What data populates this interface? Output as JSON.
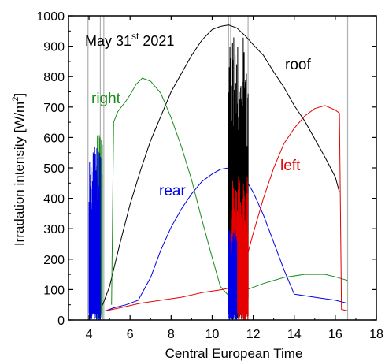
{
  "chart_data": {
    "type": "line",
    "title_parts": {
      "prefix": "May 31",
      "sup": "st",
      "suffix": " 2021"
    },
    "xlabel": "Central European Time",
    "ylabel": "Irradation intensity [W/m",
    "ylabel_sup": "2",
    "ylabel_suffix": "]",
    "xlim": [
      3,
      18
    ],
    "ylim": [
      0,
      1000
    ],
    "xticks": [
      4,
      6,
      8,
      10,
      12,
      14,
      16,
      18
    ],
    "yticks": [
      0,
      100,
      200,
      300,
      400,
      500,
      600,
      700,
      800,
      900,
      1000
    ],
    "xtick_labels": [
      "4",
      "6",
      "8",
      "10",
      "12",
      "14",
      "16",
      "18"
    ],
    "ytick_labels": [
      "0",
      "100",
      "200",
      "300",
      "400",
      "500",
      "600",
      "700",
      "800",
      "900",
      "1000"
    ],
    "vertical_markers": [
      3.95,
      4.55,
      4.72,
      10.8,
      10.9,
      11.75,
      16.6
    ],
    "series": [
      {
        "name": "roof",
        "color": "#000000",
        "x": [
          4.5,
          5.0,
          5.5,
          6.0,
          6.5,
          7.0,
          7.5,
          8.0,
          8.5,
          9.0,
          9.5,
          10.0,
          10.4,
          10.8,
          11.2,
          11.6,
          12.0,
          12.5,
          13.0,
          13.5,
          14.0,
          14.5,
          15.0,
          15.5,
          16.0,
          16.2
        ],
        "y": [
          20,
          110,
          250,
          380,
          490,
          590,
          670,
          750,
          810,
          870,
          920,
          955,
          965,
          970,
          960,
          935,
          905,
          870,
          815,
          765,
          705,
          655,
          595,
          535,
          470,
          420
        ]
      },
      {
        "name": "right",
        "color": "#1a8c1a",
        "x": [
          5.1,
          5.2,
          5.4,
          5.8,
          6.0,
          6.3,
          6.6,
          7.0,
          7.5,
          8.0,
          8.5,
          9.0,
          9.5,
          10.0,
          10.4,
          10.8,
          11.5,
          12.5,
          13.5,
          14.5,
          15.5,
          16.0,
          16.6
        ],
        "y": [
          50,
          650,
          685,
          720,
          740,
          775,
          795,
          785,
          745,
          665,
          570,
          460,
          330,
          205,
          110,
          80,
          95,
          120,
          140,
          150,
          150,
          142,
          130
        ]
      },
      {
        "name": "rear",
        "color": "#0000e6",
        "x": [
          4.8,
          5.2,
          5.8,
          6.4,
          7.0,
          7.5,
          8.0,
          8.5,
          9.0,
          9.5,
          10.0,
          10.4,
          10.8,
          11.2,
          11.6,
          12.0,
          12.5,
          13.0,
          13.5,
          14.0,
          15.0,
          16.0,
          16.6
        ],
        "y": [
          30,
          40,
          50,
          65,
          140,
          230,
          305,
          365,
          415,
          455,
          480,
          495,
          500,
          490,
          465,
          420,
          345,
          255,
          165,
          85,
          75,
          65,
          55
        ]
      },
      {
        "name": "left",
        "color": "#e60000",
        "x": [
          4.8,
          5.5,
          6.5,
          7.5,
          8.5,
          9.5,
          10.5,
          10.8,
          11.5,
          12.0,
          12.5,
          13.0,
          13.5,
          14.0,
          14.5,
          15.0,
          15.5,
          16.0,
          16.2,
          16.3,
          16.6
        ],
        "y": [
          30,
          40,
          55,
          65,
          75,
          90,
          100,
          105,
          160,
          285,
          400,
          500,
          580,
          630,
          670,
          695,
          705,
          690,
          680,
          35,
          30
        ]
      }
    ],
    "series_label_text": {
      "roof": "roof",
      "right": "right",
      "rear": "rear",
      "left": "left"
    },
    "bursts": [
      {
        "series": "right",
        "color": "#1a8c1a",
        "x0": 4.35,
        "x1": 4.65,
        "ymax": 620
      },
      {
        "series": "rear",
        "color": "#0000e6",
        "x0": 4.0,
        "x1": 4.55,
        "ymax": 575
      },
      {
        "series": "roof",
        "color": "#000000",
        "x0": 10.8,
        "x1": 11.75,
        "ymax": 945
      },
      {
        "series": "left",
        "color": "#e60000",
        "x0": 10.9,
        "x1": 11.75,
        "ymax": 480
      },
      {
        "series": "rear",
        "color": "#0000e6",
        "x0": 10.8,
        "x1": 11.2,
        "ymax": 300
      }
    ]
  }
}
